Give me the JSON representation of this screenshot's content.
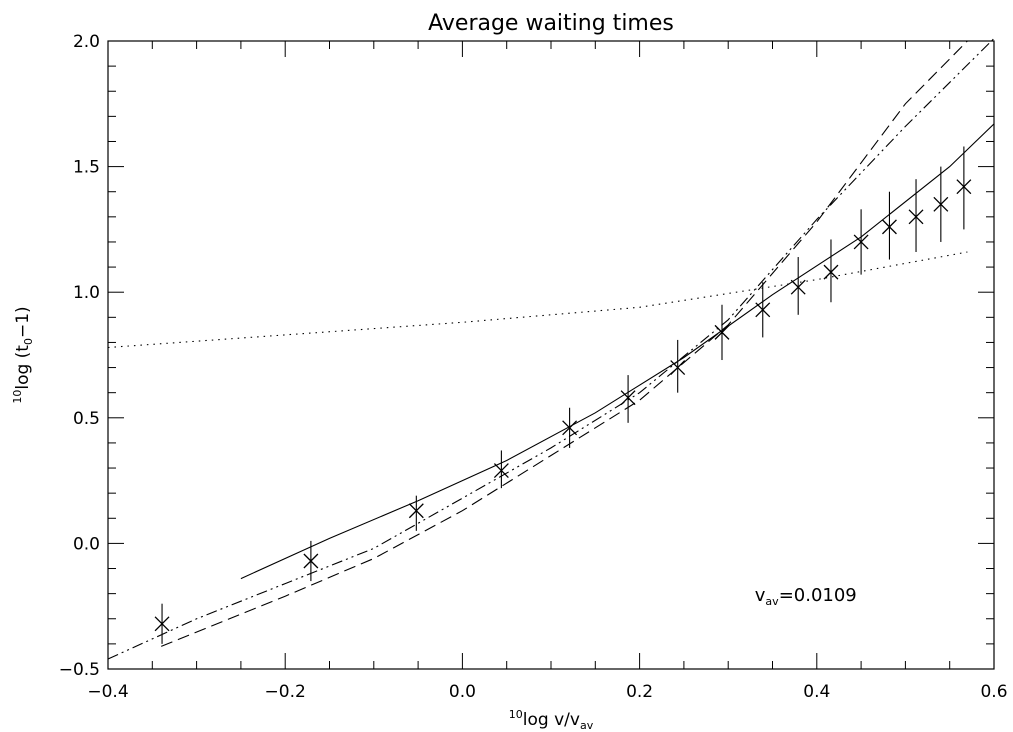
{
  "chart_data": {
    "type": "scatter",
    "title": "Average waiting times",
    "xlabel": {
      "pre": "10",
      "main": "log v/v",
      "sub": "av"
    },
    "ylabel": {
      "pre": "10",
      "main": "log (t",
      "sub": "0",
      "post": "−1)"
    },
    "xlim": [
      -0.4,
      0.6
    ],
    "ylim": [
      -0.5,
      2.0
    ],
    "xticks": [
      -0.4,
      -0.2,
      0.0,
      0.2,
      0.4,
      0.6
    ],
    "xtick_labels": [
      "−0.4",
      "−0.2",
      "0.0",
      "0.2",
      "0.4",
      "0.6"
    ],
    "yticks": [
      -0.5,
      0.0,
      0.5,
      1.0,
      1.5,
      2.0
    ],
    "ytick_labels": [
      "−0.5",
      "0.0",
      "0.5",
      "1.0",
      "1.5",
      "2.0"
    ],
    "x_minor_step": 0.05,
    "y_minor_step": 0.1,
    "grid": false,
    "annotation": {
      "main": "v",
      "sub": "av",
      "rest": "=0.0109",
      "x": 0.33,
      "y": -0.23
    },
    "points": [
      {
        "x": -0.339,
        "y": -0.32,
        "lo": -0.4,
        "hi": -0.24
      },
      {
        "x": -0.171,
        "y": -0.07,
        "lo": -0.15,
        "hi": 0.01
      },
      {
        "x": -0.052,
        "y": 0.13,
        "lo": 0.05,
        "hi": 0.19
      },
      {
        "x": 0.044,
        "y": 0.29,
        "lo": 0.22,
        "hi": 0.37
      },
      {
        "x": 0.121,
        "y": 0.46,
        "lo": 0.38,
        "hi": 0.54
      },
      {
        "x": 0.187,
        "y": 0.58,
        "lo": 0.48,
        "hi": 0.67
      },
      {
        "x": 0.243,
        "y": 0.7,
        "lo": 0.6,
        "hi": 0.81
      },
      {
        "x": 0.293,
        "y": 0.84,
        "lo": 0.73,
        "hi": 0.95
      },
      {
        "x": 0.339,
        "y": 0.93,
        "lo": 0.82,
        "hi": 1.04
      },
      {
        "x": 0.379,
        "y": 1.02,
        "lo": 0.91,
        "hi": 1.14
      },
      {
        "x": 0.416,
        "y": 1.08,
        "lo": 0.96,
        "hi": 1.21
      },
      {
        "x": 0.45,
        "y": 1.2,
        "lo": 1.07,
        "hi": 1.33
      },
      {
        "x": 0.482,
        "y": 1.26,
        "lo": 1.13,
        "hi": 1.4
      },
      {
        "x": 0.512,
        "y": 1.3,
        "lo": 1.16,
        "hi": 1.45
      },
      {
        "x": 0.54,
        "y": 1.35,
        "lo": 1.2,
        "hi": 1.5
      },
      {
        "x": 0.566,
        "y": 1.42,
        "lo": 1.25,
        "hi": 1.58
      }
    ],
    "series": [
      {
        "style": "solid",
        "x": [
          -0.25,
          -0.15,
          -0.05,
          0.05,
          0.15,
          0.25,
          0.35,
          0.45,
          0.55,
          0.6
        ],
        "y": [
          -0.14,
          0.02,
          0.17,
          0.33,
          0.52,
          0.74,
          0.99,
          1.22,
          1.5,
          1.67
        ]
      },
      {
        "style": "dotted",
        "x": [
          -0.4,
          -0.2,
          0.0,
          0.2,
          0.4,
          0.57
        ],
        "y": [
          0.78,
          0.83,
          0.88,
          0.94,
          1.05,
          1.16
        ]
      },
      {
        "style": "dashed",
        "x": [
          -0.34,
          -0.2,
          -0.1,
          0.0,
          0.1,
          0.2,
          0.3,
          0.4,
          0.5,
          0.57
        ],
        "y": [
          -0.41,
          -0.21,
          -0.06,
          0.13,
          0.35,
          0.57,
          0.87,
          1.28,
          1.75,
          2.0
        ]
      },
      {
        "style": "dashdotdot",
        "x": [
          -0.4,
          -0.3,
          -0.2,
          -0.1,
          0.0,
          0.1,
          0.2,
          0.3,
          0.4,
          0.5,
          0.6
        ],
        "y": [
          -0.46,
          -0.3,
          -0.16,
          -0.02,
          0.18,
          0.38,
          0.6,
          0.89,
          1.29,
          1.66,
          2.01
        ]
      }
    ]
  }
}
